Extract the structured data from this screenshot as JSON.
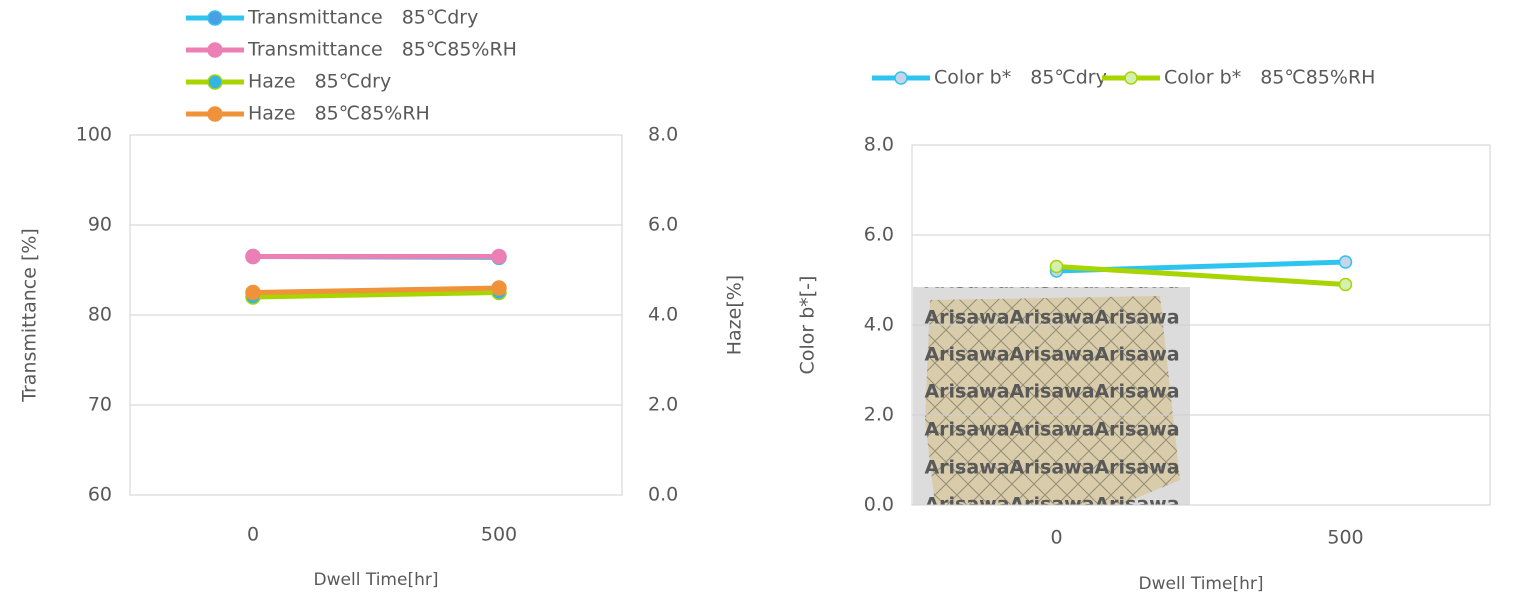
{
  "chart_data": [
    {
      "type": "line",
      "x_label": "Dwell Time[hr]",
      "y_label": "Transmittance [%]",
      "y2_label": "Haze[%]",
      "categories": [
        "0",
        "500"
      ],
      "ylim": [
        60,
        100
      ],
      "yticks": [
        60,
        70,
        80,
        90,
        100
      ],
      "y2lim": [
        0,
        8
      ],
      "y2ticks": [
        {
          "value": 0,
          "label": "0.0"
        },
        {
          "value": 2,
          "label": "2.0"
        },
        {
          "value": 4,
          "label": "4.0"
        },
        {
          "value": 6,
          "label": "6.0"
        },
        {
          "value": 8,
          "label": "8.0"
        }
      ],
      "grid": true,
      "legend": "top-left",
      "series": [
        {
          "name": "Transmittance　85℃dry",
          "color": "#2ec4f0",
          "marker_fill": "#4a9fe0",
          "values": [
            86.5,
            86.4
          ]
        },
        {
          "name": "Transmittance　85℃85%RH",
          "color": "#ec7fb4",
          "marker_fill": "#ec7fb4",
          "values": [
            86.5,
            86.5
          ]
        },
        {
          "name": "Haze　85℃dry",
          "color": "#a8d400",
          "marker_fill": "#34b4e4",
          "values": [
            4.4,
            4.5
          ],
          "axis": "y2"
        },
        {
          "name": "Haze　85℃85%RH",
          "color": "#f0923a",
          "marker_fill": "#f0923a",
          "values": [
            4.5,
            4.6
          ],
          "axis": "y2"
        }
      ]
    },
    {
      "type": "line",
      "x_label": "Dwell Time[hr]",
      "y_label": "Color b*[-]",
      "categories": [
        "0",
        "500"
      ],
      "ylim": [
        0,
        8
      ],
      "yticks": [
        {
          "value": 0,
          "label": "0.0"
        },
        {
          "value": 2,
          "label": "2.0"
        },
        {
          "value": 4,
          "label": "4.0"
        },
        {
          "value": 6,
          "label": "6.0"
        },
        {
          "value": 8,
          "label": "8.0"
        }
      ],
      "grid": true,
      "legend": "top",
      "annotation": "Arisawa",
      "series": [
        {
          "name": "Color b*　85℃dry",
          "color": "#2ec4f0",
          "marker_fill": "#c8d4e8",
          "values": [
            5.2,
            5.4
          ]
        },
        {
          "name": "Color b*　85℃85%RH",
          "color": "#a8d400",
          "marker_fill": "#d4f0b0",
          "values": [
            5.3,
            4.9
          ]
        }
      ]
    }
  ]
}
